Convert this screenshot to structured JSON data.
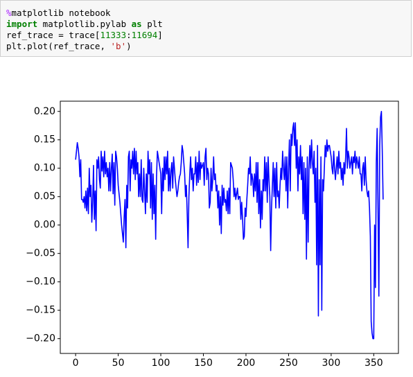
{
  "code": {
    "lines": [
      [
        "%",
        "matplotlib notebook"
      ],
      [
        "import",
        " matplotlib.pylab ",
        "as",
        " plt"
      ],
      [
        "ref_trace = trace[",
        "11333",
        ":",
        "11694",
        "]"
      ],
      [
        "plt.plot(ref_trace, ",
        "'b'",
        ")"
      ]
    ]
  },
  "chart_data": {
    "type": "line",
    "color": "#0000ff",
    "values": [
      0.115,
      0.13,
      0.145,
      0.135,
      0.12,
      0.085,
      0.115,
      0.045,
      0.045,
      0.04,
      0.05,
      0.03,
      0.06,
      0.025,
      0.065,
      0.02,
      0.1,
      0.05,
      0.07,
      0.005,
      0.04,
      0.105,
      0.01,
      0.06,
      -0.01,
      0.115,
      0.1,
      0.12,
      0.08,
      0.065,
      0.13,
      0.095,
      0.12,
      0.085,
      0.13,
      0.09,
      0.11,
      0.085,
      0.1,
      0.06,
      0.11,
      0.06,
      0.1,
      0.125,
      0.055,
      0.11,
      0.035,
      0.13,
      0.12,
      0.1,
      0.07,
      0.055,
      0.04,
      0.02,
      0,
      -0.015,
      -0.03,
      0.015,
      0.045,
      -0.04,
      0.07,
      0.03,
      0.12,
      0.13,
      0.06,
      0.115,
      0.1,
      0.13,
      0.09,
      0.135,
      0.08,
      0.13,
      0.09,
      0.11,
      0.05,
      0.09,
      0.05,
      0.115,
      0.045,
      0.04,
      0.1,
      0.06,
      0.02,
      0.09,
      0.04,
      0.13,
      0.09,
      0.115,
      0.03,
      0.11,
      0.01,
      0.09,
      0.02,
      0.07,
      -0.025,
      0.085,
      0.13,
      0.12,
      0.11,
      0.1,
      0.09,
      0.02,
      0.1,
      0.06,
      0.12,
      0.08,
      0.12,
      0.09,
      0.13,
      0.06,
      0.1,
      0.06,
      0.095,
      0.11,
      0.065,
      0.12,
      0.1,
      0.08,
      0.065,
      0.05,
      0.06,
      0.075,
      0.085,
      0.09,
      0.11,
      0.14,
      0.13,
      0.11,
      0.09,
      0.05,
      0.07,
      0.02,
      -0.04,
      0.05,
      0.09,
      0.12,
      0.08,
      0.1,
      0.06,
      0.09,
      0.09,
      0.12,
      0.07,
      0.11,
      0.075,
      0.13,
      0.08,
      0.11,
      0.1,
      0.105,
      0.11,
      0.07,
      0.12,
      0.135,
      0.08,
      0.1,
      0.09,
      0.03,
      0.04,
      0.1,
      0.06,
      0.08,
      0.12,
      0.08,
      0.09,
      0.06,
      0.07,
      0.03,
      0.06,
      0,
      0.05,
      -0.015,
      0.07,
      0.035,
      0.065,
      0.04,
      0.045,
      0.025,
      0.06,
      0.02,
      0.065,
      0.02,
      0.11,
      0.105,
      0.1,
      0.08,
      0.05,
      0.065,
      0.045,
      0.055,
      0.065,
      0.045,
      0.05,
      0.05,
      0.01,
      0.04,
      0.01,
      -0.025,
      -0.02,
      0.03,
      0.015,
      0.045,
      0.07,
      0.1,
      0.09,
      0.12,
      0.07,
      0.09,
      0.08,
      0.05,
      0.09,
      0.06,
      0.11,
      0.04,
      0.11,
      0.02,
      0.08,
      -0.005,
      0.06,
      0.01,
      0.08,
      0.06,
      0.12,
      0.06,
      0.11,
      0.04,
      0.12,
      0.08,
      0.05,
      -0.045,
      0.03,
      0.07,
      0.11,
      0.05,
      0.1,
      0.03,
      0.11,
      0.05,
      0.06,
      0.03,
      0.07,
      0.1,
      0.08,
      0.13,
      0.1,
      0.08,
      0.12,
      0.06,
      0.12,
      0.03,
      0.1,
      0.15,
      0.06,
      0.16,
      0.14,
      0.17,
      0.18,
      0.14,
      0.18,
      0.1,
      0.15,
      0.06,
      0.12,
      0.09,
      0.14,
      0.08,
      0.12,
      0.02,
      0.11,
      0.01,
      0.1,
      -0.06,
      0.12,
      -0.03,
      0.1,
      0.14,
      0.1,
      0.15,
      0.11,
      0.09,
      0.13,
      0.04,
      0.1,
      -0.07,
      0.14,
      -0.16,
      0.08,
      -0.07,
      0.12,
      -0.15,
      0.08,
      0.06,
      0.1,
      0.14,
      0.12,
      0.15,
      0.13,
      0.14,
      0.14,
      0.13,
      0.12,
      0.1,
      0.09,
      0.13,
      0.1,
      0.08,
      0.1,
      0.12,
      0.09,
      0.13,
      0.1,
      0.11,
      0.08,
      0.1,
      0.07,
      0.11,
      0.09,
      0.12,
      0.17,
      0.1,
      0.13,
      0.12,
      0.1,
      0.11,
      0.12,
      0.09,
      0.12,
      0.11,
      0.13,
      0.1,
      0.12,
      0.11,
      0.1,
      0.12,
      0.09,
      0.09,
      0.06,
      0.1,
      0.11,
      0.07,
      0.12,
      0.08,
      0.06,
      0.05,
      0.06,
      0.03,
      -0.02,
      -0.17,
      -0.19,
      -0.2,
      -0.2,
      0,
      -0.11,
      0.11,
      0.17,
      0.03,
      -0.125,
      0.14,
      0.19,
      0.2,
      0.13,
      0.045
    ],
    "xlim": [
      -18,
      379
    ],
    "xticks": [
      0,
      50,
      100,
      150,
      200,
      250,
      300,
      350
    ],
    "ylim": [
      -0.226,
      0.218
    ],
    "yticks": [
      {
        "value": -0.2,
        "label": "−0.20"
      },
      {
        "value": -0.15,
        "label": "−0.15"
      },
      {
        "value": -0.1,
        "label": "−0.10"
      },
      {
        "value": -0.05,
        "label": "−0.05"
      },
      {
        "value": 0,
        "label": "0.00"
      },
      {
        "value": 0.05,
        "label": "0.05"
      },
      {
        "value": 0.1,
        "label": "0.10"
      },
      {
        "value": 0.15,
        "label": "0.15"
      },
      {
        "value": 0.2,
        "label": "0.20"
      }
    ]
  }
}
